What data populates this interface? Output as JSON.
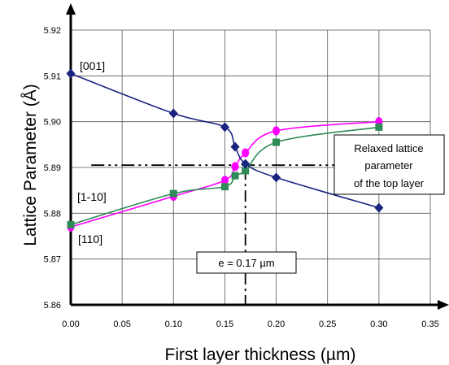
{
  "chart_data": {
    "type": "line",
    "xlabel": "First layer thickness (µm)",
    "ylabel": "Lattice Parameter (Å)",
    "xlim": [
      0,
      0.35
    ],
    "ylim": [
      5.86,
      5.92
    ],
    "xticks": [
      "0.00",
      "0.05",
      "0.10",
      "0.15",
      "0.20",
      "0.25",
      "0.30",
      "0.35"
    ],
    "yticks": [
      "5.86",
      "5.87",
      "5.88",
      "5.89",
      "5.90",
      "5.91",
      "5.92"
    ],
    "grid": true,
    "series": [
      {
        "name": "[001]",
        "color": "#1a237e",
        "marker": "diamond",
        "x": [
          0.0,
          0.1,
          0.15,
          0.16,
          0.17,
          0.2,
          0.3
        ],
        "y": [
          5.9105,
          5.9018,
          5.8988,
          5.8945,
          5.8908,
          5.8878,
          5.8812
        ]
      },
      {
        "name": "[1-10]",
        "color": "#2e8b57",
        "marker": "square",
        "x": [
          0.0,
          0.1,
          0.15,
          0.16,
          0.17,
          0.2,
          0.3
        ],
        "y": [
          5.8775,
          5.8843,
          5.8858,
          5.8882,
          5.8893,
          5.8955,
          5.8988
        ]
      },
      {
        "name": "[110]",
        "color": "#ff00ff",
        "marker": "circle",
        "x": [
          0.0,
          0.1,
          0.15,
          0.16,
          0.17,
          0.2,
          0.3
        ],
        "y": [
          5.877,
          5.8837,
          5.8872,
          5.8902,
          5.8932,
          5.898,
          5.9
        ]
      }
    ],
    "reference_lines": [
      {
        "orientation": "horizontal",
        "value": 5.8905,
        "label": "Relaxed lattice parameter of the top layer",
        "label_lines": [
          "Relaxed lattice",
          "parameter",
          "of the top layer"
        ]
      },
      {
        "orientation": "vertical",
        "value": 0.17,
        "label": "e = 0.17 µm"
      }
    ]
  }
}
